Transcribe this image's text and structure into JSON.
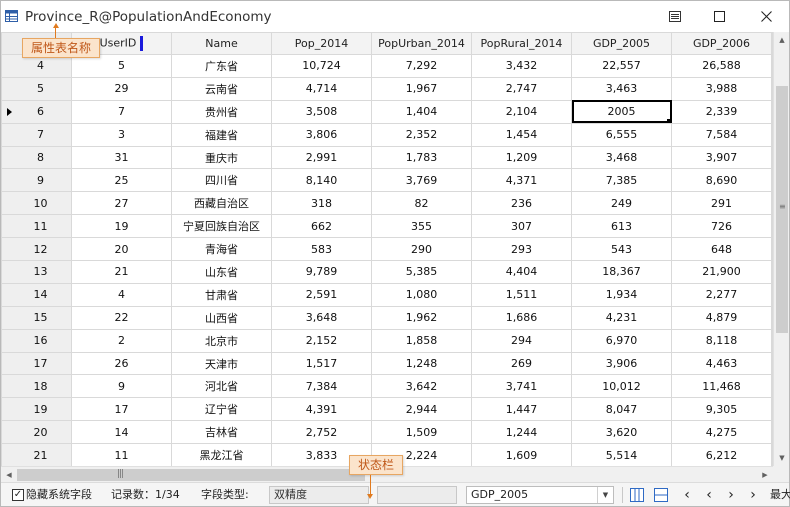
{
  "window": {
    "title": "Province_R@PopulationAndEconomy",
    "accent_color": "#1a1adc"
  },
  "table": {
    "columns": [
      "UserID",
      "Name",
      "Pop_2014",
      "PopUrban_2014",
      "PopRural_2014",
      "GDP_2005",
      "GDP_2006"
    ],
    "rows": [
      {
        "index": "4",
        "cells": [
          "5",
          "广东省",
          "10,724",
          "7,292",
          "3,432",
          "22,557",
          "26,588"
        ]
      },
      {
        "index": "5",
        "cells": [
          "29",
          "云南省",
          "4,714",
          "1,967",
          "2,747",
          "3,463",
          "3,988"
        ]
      },
      {
        "index": "6",
        "cells": [
          "7",
          "贵州省",
          "3,508",
          "1,404",
          "2,104",
          "2005",
          "2,339"
        ]
      },
      {
        "index": "7",
        "cells": [
          "3",
          "福建省",
          "3,806",
          "2,352",
          "1,454",
          "6,555",
          "7,584"
        ]
      },
      {
        "index": "8",
        "cells": [
          "31",
          "重庆市",
          "2,991",
          "1,783",
          "1,209",
          "3,468",
          "3,907"
        ]
      },
      {
        "index": "9",
        "cells": [
          "25",
          "四川省",
          "8,140",
          "3,769",
          "4,371",
          "7,385",
          "8,690"
        ]
      },
      {
        "index": "10",
        "cells": [
          "27",
          "西藏自治区",
          "318",
          "82",
          "236",
          "249",
          "291"
        ]
      },
      {
        "index": "11",
        "cells": [
          "19",
          "宁夏回族自治区",
          "662",
          "355",
          "307",
          "613",
          "726"
        ]
      },
      {
        "index": "12",
        "cells": [
          "20",
          "青海省",
          "583",
          "290",
          "293",
          "543",
          "648"
        ]
      },
      {
        "index": "13",
        "cells": [
          "21",
          "山东省",
          "9,789",
          "5,385",
          "4,404",
          "18,367",
          "21,900"
        ]
      },
      {
        "index": "14",
        "cells": [
          "4",
          "甘肃省",
          "2,591",
          "1,080",
          "1,511",
          "1,934",
          "2,277"
        ]
      },
      {
        "index": "15",
        "cells": [
          "22",
          "山西省",
          "3,648",
          "1,962",
          "1,686",
          "4,231",
          "4,879"
        ]
      },
      {
        "index": "16",
        "cells": [
          "2",
          "北京市",
          "2,152",
          "1,858",
          "294",
          "6,970",
          "8,118"
        ]
      },
      {
        "index": "17",
        "cells": [
          "26",
          "天津市",
          "1,517",
          "1,248",
          "269",
          "3,906",
          "4,463"
        ]
      },
      {
        "index": "18",
        "cells": [
          "9",
          "河北省",
          "7,384",
          "3,642",
          "3,741",
          "10,012",
          "11,468"
        ]
      },
      {
        "index": "19",
        "cells": [
          "17",
          "辽宁省",
          "4,391",
          "2,944",
          "1,447",
          "8,047",
          "9,305"
        ]
      },
      {
        "index": "20",
        "cells": [
          "14",
          "吉林省",
          "2,752",
          "1,509",
          "1,244",
          "3,620",
          "4,275"
        ]
      },
      {
        "index": "21",
        "cells": [
          "11",
          "黑龙江省",
          "3,833",
          "2,224",
          "1,609",
          "5,514",
          "6,212"
        ]
      }
    ],
    "current_row_index": "6"
  },
  "statusbar": {
    "hide_system_fields_label": "隐藏系统字段",
    "hide_system_fields_checked": true,
    "record_count_label": "记录数：1/34",
    "field_type_label": "字段类型:",
    "field_type_value": "双精度",
    "field_select_value": "GDP_2005",
    "overflow_label": "最大"
  },
  "callouts": {
    "title_label": "属性表名称",
    "status_label": "状态栏",
    "color": "#e07a1e"
  },
  "icons": {
    "window_icon": "table-icon",
    "list_button": "list-icon",
    "maximize_button": "maximize-icon",
    "close_button": "close-icon"
  }
}
